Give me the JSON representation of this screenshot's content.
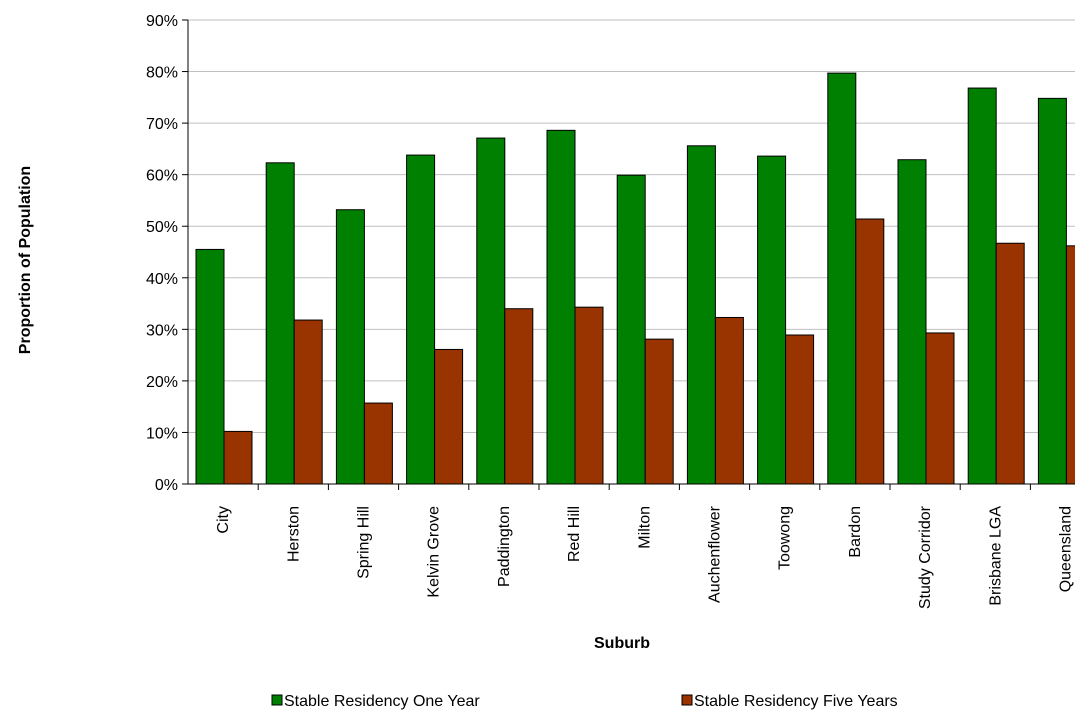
{
  "chart_data": {
    "type": "bar",
    "title": "",
    "xlabel": "Suburb",
    "ylabel": "Proportion of Population",
    "ylim": [
      0,
      90
    ],
    "yticks": [
      0,
      10,
      20,
      30,
      40,
      50,
      60,
      70,
      80,
      90
    ],
    "ytick_labels": [
      "0%",
      "10%",
      "20%",
      "30%",
      "40%",
      "50%",
      "60%",
      "70%",
      "80%",
      "90%"
    ],
    "grid": true,
    "legend_position": "bottom",
    "categories": [
      "City",
      "Herston",
      "Spring Hill",
      "Kelvin Grove",
      "Paddington",
      "Red Hill",
      "Milton",
      "Auchenflower",
      "Toowong",
      "Bardon",
      "Study Corridor",
      "Brisbane LGA",
      "Queensland"
    ],
    "series": [
      {
        "name": "Stable Residency One Year",
        "color": "#008000",
        "values": [
          45.5,
          62.3,
          53.2,
          63.8,
          67.1,
          68.6,
          59.9,
          65.6,
          63.6,
          79.7,
          62.9,
          76.8,
          74.8
        ]
      },
      {
        "name": "Stable Residency Five Years",
        "color": "#993300",
        "values": [
          10.2,
          31.8,
          15.7,
          26.1,
          34.0,
          34.3,
          28.1,
          32.3,
          28.9,
          51.4,
          29.3,
          46.7,
          46.2
        ]
      }
    ]
  }
}
